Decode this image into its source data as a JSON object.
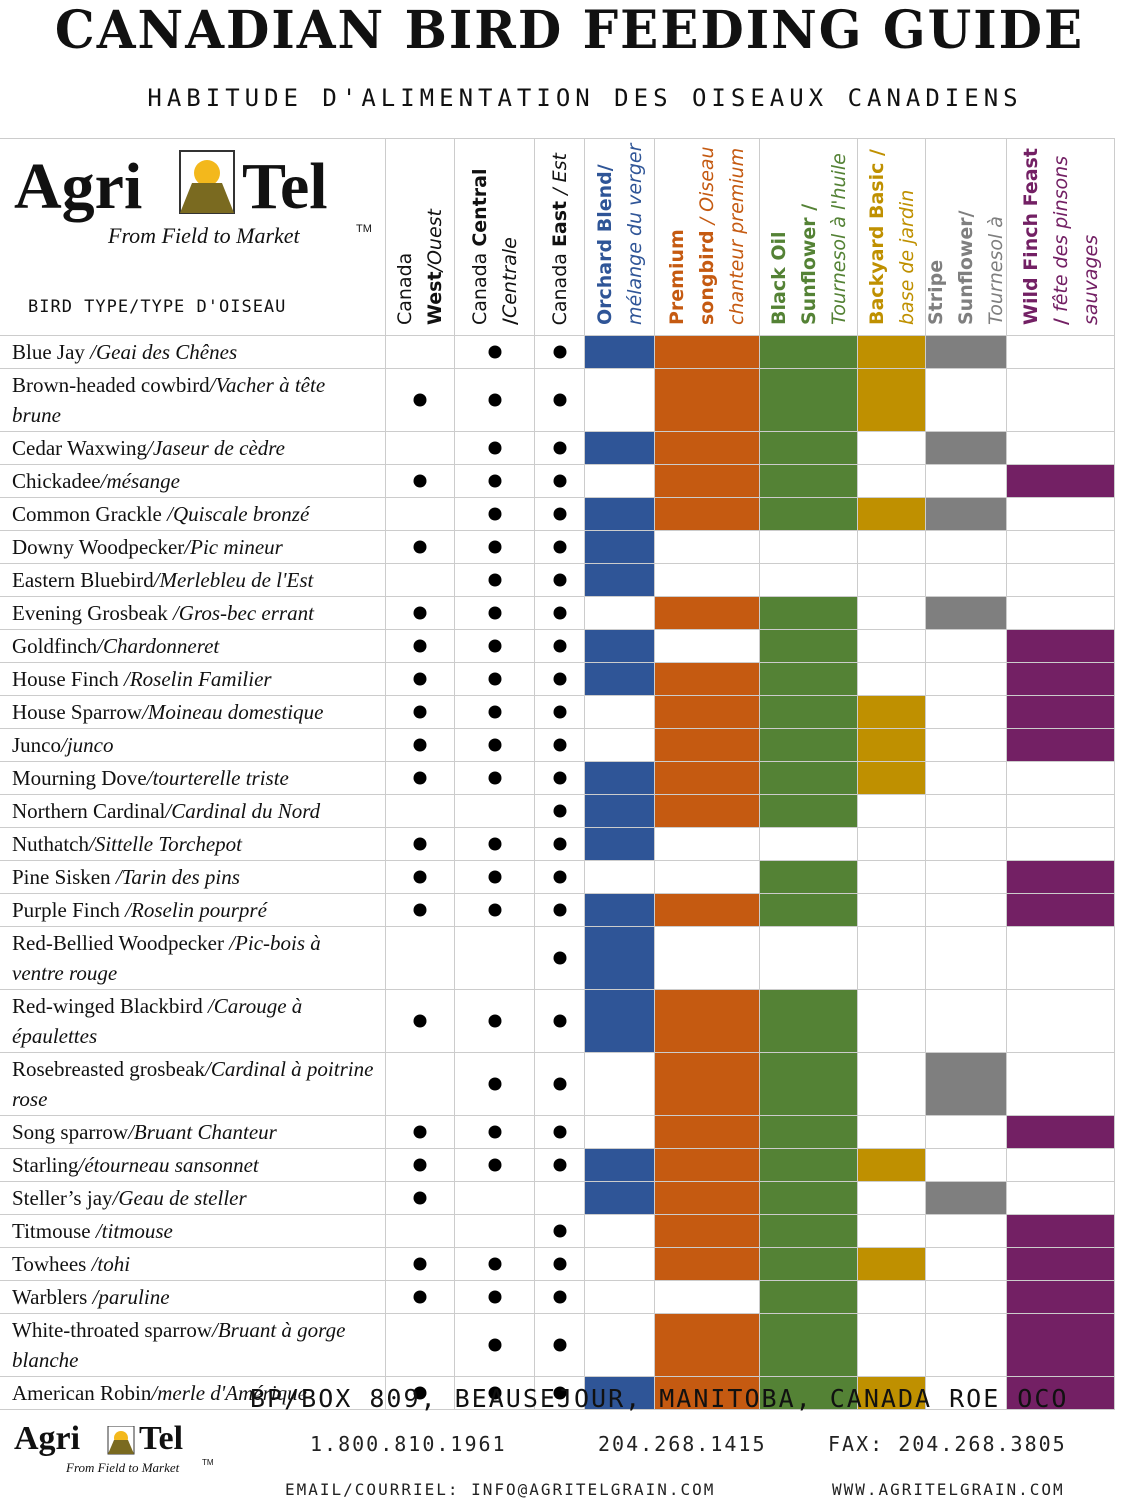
{
  "header": {
    "title": "CANADIAN BIRD FEEDING GUIDE",
    "subtitle": "HABITUDE D'ALIMENTATION DES OISEAUX CANADIENS"
  },
  "logo": {
    "brand_left": "Agri",
    "brand_right": "Tel",
    "tagline": "From Field to Market",
    "tm": "TM"
  },
  "table": {
    "bird_header": "BIRD TYPE/TYPE D'OISEAU",
    "regions": [
      {
        "lead": "Canada ",
        "bold": "West",
        "fr": "/Ouest"
      },
      {
        "lead": "Canada ",
        "bold": "Central /",
        "fr": "Centrale"
      },
      {
        "lead": "Canada ",
        "bold": "East",
        "fr": " / Est"
      }
    ],
    "feeds": [
      {
        "name": "Orchard Blend/",
        "fr": "mélange du verger",
        "color": "#2f5597"
      },
      {
        "name": "Premium songbird",
        "fr": "/ Oiseau chanteur premium",
        "color": "#c55a11"
      },
      {
        "name": "Black Oil Sunflower /",
        "fr": "Tournesol à l'huile",
        "color": "#548235"
      },
      {
        "name": "Backyard Basic /",
        "fr": "base de jardin",
        "color": "#bf9000"
      },
      {
        "name": "Stripe Sunflower/",
        "fr": "Tournesol à",
        "color": "#7f7f7f"
      },
      {
        "name": "Wild Finch Feast /",
        "fr": "fête des pinsons sauvages",
        "color": "#732064"
      }
    ],
    "rows": [
      {
        "en": "Blue Jay",
        "fr": " /Geai des Chênes",
        "regions": [
          false,
          true,
          true
        ],
        "feeds": [
          true,
          true,
          true,
          true,
          true,
          false
        ]
      },
      {
        "en": "Brown-headed cowbird",
        "fr": "/Vacher à tête brune",
        "regions": [
          true,
          true,
          true
        ],
        "feeds": [
          false,
          true,
          true,
          true,
          false,
          false
        ]
      },
      {
        "en": "Cedar Waxwing",
        "fr": "/Jaseur de cèdre",
        "regions": [
          false,
          true,
          true
        ],
        "feeds": [
          true,
          true,
          true,
          false,
          true,
          false
        ]
      },
      {
        "en": "Chickadee",
        "fr": "/mésange",
        "regions": [
          true,
          true,
          true
        ],
        "feeds": [
          false,
          true,
          true,
          false,
          false,
          true
        ]
      },
      {
        "en": "Common Grackle",
        "fr": " /Quiscale bronzé",
        "regions": [
          false,
          true,
          true
        ],
        "feeds": [
          true,
          true,
          true,
          true,
          true,
          false
        ]
      },
      {
        "en": "Downy Woodpecker",
        "fr": "/Pic mineur",
        "regions": [
          true,
          true,
          true
        ],
        "feeds": [
          true,
          false,
          false,
          false,
          false,
          false
        ]
      },
      {
        "en": "Eastern Bluebird",
        "fr": "/Merlebleu de l'Est",
        "regions": [
          false,
          true,
          true
        ],
        "feeds": [
          true,
          false,
          false,
          false,
          false,
          false
        ]
      },
      {
        "en": "Evening Grosbeak",
        "fr": " /Gros-bec errant",
        "regions": [
          true,
          true,
          true
        ],
        "feeds": [
          false,
          true,
          true,
          false,
          true,
          false
        ]
      },
      {
        "en": "Goldfinch",
        "fr": "/Chardonneret",
        "regions": [
          true,
          true,
          true
        ],
        "feeds": [
          true,
          false,
          true,
          false,
          false,
          true
        ]
      },
      {
        "en": "House Finch",
        "fr": " /Roselin Familier",
        "regions": [
          true,
          true,
          true
        ],
        "feeds": [
          true,
          true,
          true,
          false,
          false,
          true
        ]
      },
      {
        "en": "House Sparrow",
        "fr": "/Moineau domestique",
        "regions": [
          true,
          true,
          true
        ],
        "feeds": [
          false,
          true,
          true,
          true,
          false,
          true
        ]
      },
      {
        "en": "Junco",
        "fr": "/junco",
        "regions": [
          true,
          true,
          true
        ],
        "feeds": [
          false,
          true,
          true,
          true,
          false,
          true
        ]
      },
      {
        "en": "Mourning Dove",
        "fr": "/tourterelle triste",
        "regions": [
          true,
          true,
          true
        ],
        "feeds": [
          true,
          true,
          true,
          true,
          false,
          false
        ]
      },
      {
        "en": "Northern Cardinal",
        "fr": "/Cardinal du Nord",
        "regions": [
          false,
          false,
          true
        ],
        "feeds": [
          true,
          true,
          true,
          false,
          false,
          false
        ]
      },
      {
        "en": "Nuthatch",
        "fr": "/Sittelle Torchepot",
        "regions": [
          true,
          true,
          true
        ],
        "feeds": [
          true,
          false,
          false,
          false,
          false,
          false
        ]
      },
      {
        "en": "Pine Sisken",
        "fr": " /Tarin des pins",
        "regions": [
          true,
          true,
          true
        ],
        "feeds": [
          false,
          false,
          true,
          false,
          false,
          true
        ]
      },
      {
        "en": "Purple Finch",
        "fr": " /Roselin pourpré",
        "regions": [
          true,
          true,
          true
        ],
        "feeds": [
          true,
          true,
          true,
          false,
          false,
          true
        ]
      },
      {
        "en": "Red-Bellied Woodpecker",
        "fr": " /Pic-bois à ventre rouge",
        "regions": [
          false,
          false,
          true
        ],
        "feeds": [
          true,
          false,
          false,
          false,
          false,
          false
        ]
      },
      {
        "en": "Red-winged Blackbird",
        "fr": " /Carouge à épaulettes",
        "regions": [
          true,
          true,
          true
        ],
        "feeds": [
          true,
          true,
          true,
          false,
          false,
          false
        ]
      },
      {
        "en": "Rosebreasted grosbeak",
        "fr": "/Cardinal à poitrine rose",
        "regions": [
          false,
          true,
          true
        ],
        "feeds": [
          false,
          true,
          true,
          false,
          true,
          false
        ]
      },
      {
        "en": "Song sparrow",
        "fr": "/Bruant Chanteur",
        "regions": [
          true,
          true,
          true
        ],
        "feeds": [
          false,
          true,
          true,
          false,
          false,
          true
        ]
      },
      {
        "en": "Starling",
        "fr": "/étourneau sansonnet",
        "regions": [
          true,
          true,
          true
        ],
        "feeds": [
          true,
          true,
          true,
          true,
          false,
          false
        ]
      },
      {
        "en": "Steller’s jay",
        "fr": "/Geau de steller",
        "regions": [
          true,
          false,
          false
        ],
        "feeds": [
          true,
          true,
          true,
          false,
          true,
          false
        ]
      },
      {
        "en": "Titmouse",
        "fr": " /titmouse",
        "regions": [
          false,
          false,
          true
        ],
        "feeds": [
          false,
          true,
          true,
          false,
          false,
          true
        ]
      },
      {
        "en": "Towhees",
        "fr": " /tohi",
        "regions": [
          true,
          true,
          true
        ],
        "feeds": [
          false,
          true,
          true,
          true,
          false,
          true
        ]
      },
      {
        "en": "Warblers",
        "fr": " /paruline",
        "regions": [
          true,
          true,
          true
        ],
        "feeds": [
          false,
          false,
          true,
          false,
          false,
          true
        ]
      },
      {
        "en": "White-throated sparrow",
        "fr": "/Bruant à gorge blanche",
        "regions": [
          false,
          true,
          true
        ],
        "feeds": [
          false,
          true,
          true,
          false,
          false,
          true
        ]
      },
      {
        "en": "American Robin",
        "fr": "/merle d'Amérique",
        "regions": [
          true,
          true,
          true
        ],
        "feeds": [
          true,
          true,
          true,
          true,
          false,
          true
        ]
      }
    ]
  },
  "footer": {
    "address": "BP/BOX 809, BEAUSEJOUR, MANITOBA, CANADA ROE OCO",
    "phone_toll": "1.800.810.1961",
    "phone": "204.268.1415",
    "fax": "FAX: 204.268.3805",
    "email": "EMAIL/COURRIEL: INFO@AGRITELGRAIN.COM",
    "web": "WWW.AGRITELGRAIN.COM"
  }
}
